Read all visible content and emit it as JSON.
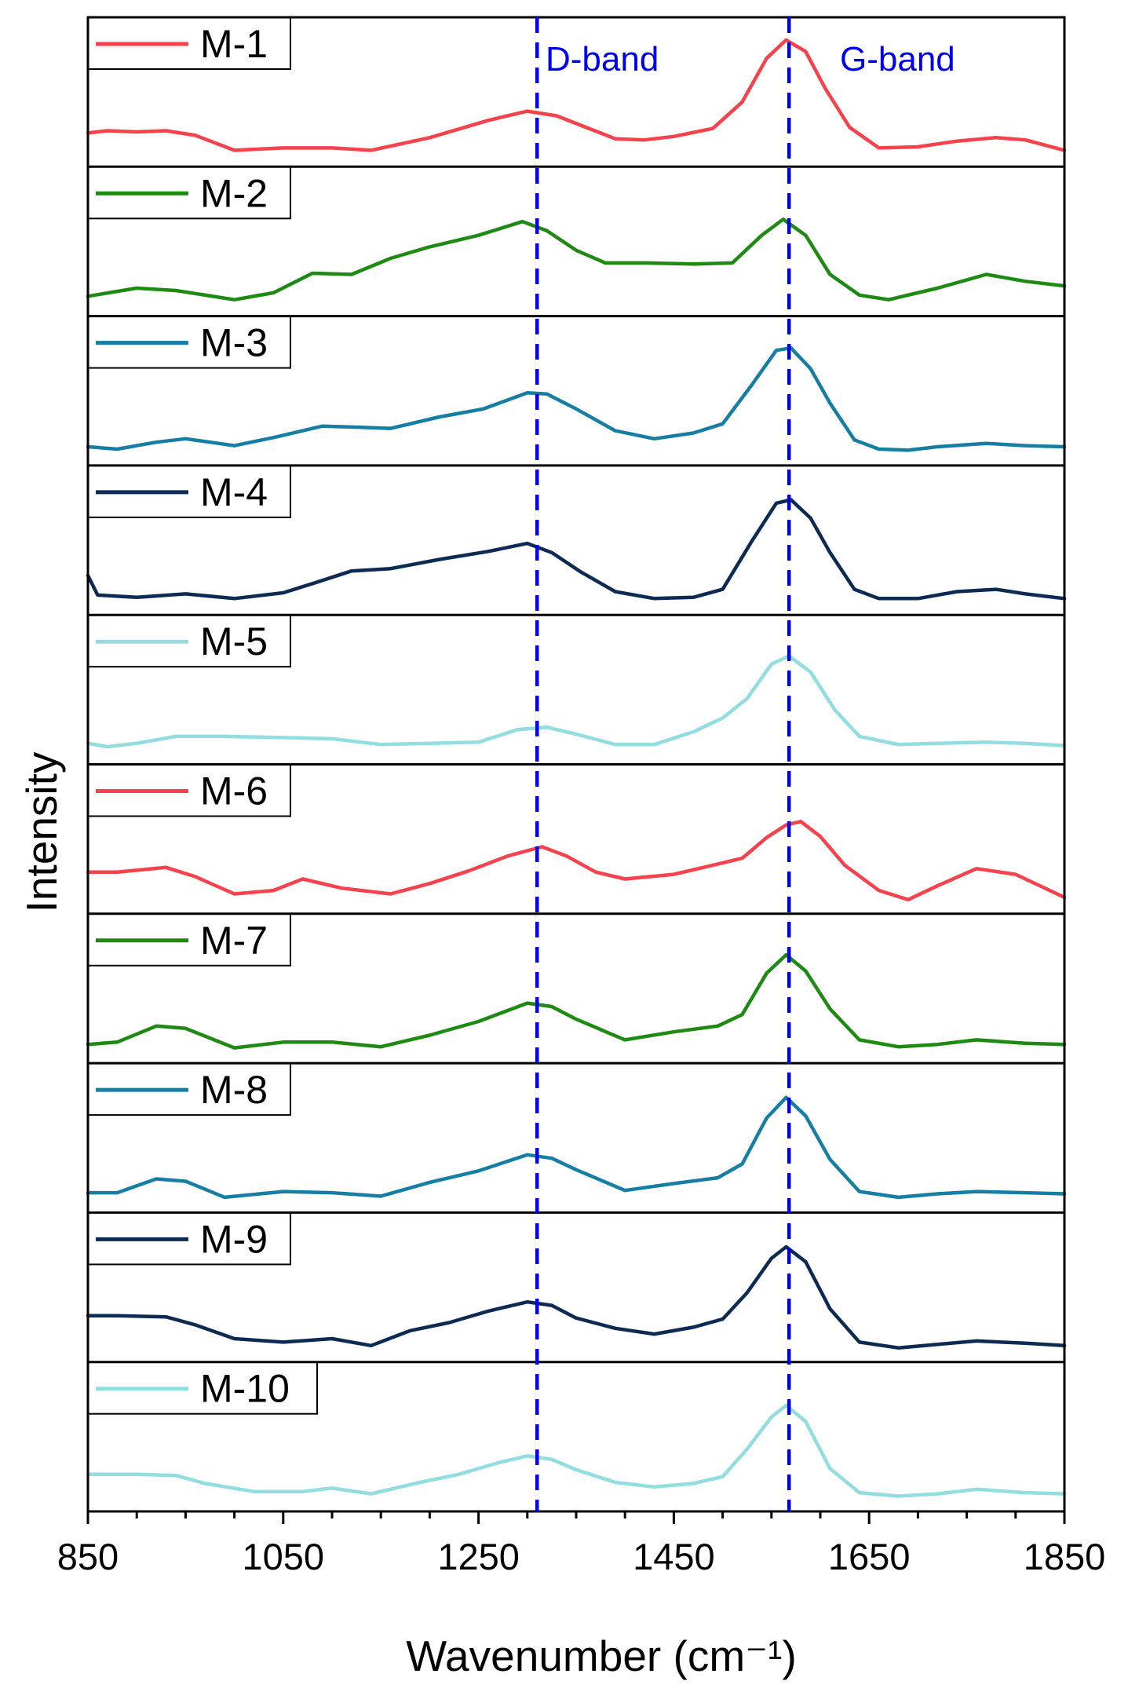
{
  "chart_data": {
    "type": "line",
    "layout": "stacked-panels",
    "xlabel": "Wavenumber (cm⁻¹)",
    "ylabel": "Intensity",
    "xlim": [
      850,
      1850
    ],
    "xticks": [
      850,
      1050,
      1250,
      1450,
      1650,
      1850
    ],
    "grid": false,
    "legend_placement": "top-left of each panel",
    "reference_lines": [
      {
        "label": "D-band",
        "x": 1310
      },
      {
        "label": "G-band",
        "x": 1568
      }
    ],
    "series": [
      {
        "name": "M-1",
        "color": "#f5424d",
        "points": [
          [
            850,
            0.17
          ],
          [
            870,
            0.19
          ],
          [
            900,
            0.18
          ],
          [
            930,
            0.19
          ],
          [
            960,
            0.15
          ],
          [
            1000,
            0.02
          ],
          [
            1050,
            0.04
          ],
          [
            1100,
            0.04
          ],
          [
            1140,
            0.02
          ],
          [
            1200,
            0.13
          ],
          [
            1260,
            0.28
          ],
          [
            1300,
            0.36
          ],
          [
            1330,
            0.32
          ],
          [
            1360,
            0.22
          ],
          [
            1390,
            0.12
          ],
          [
            1420,
            0.11
          ],
          [
            1450,
            0.14
          ],
          [
            1490,
            0.21
          ],
          [
            1520,
            0.44
          ],
          [
            1545,
            0.82
          ],
          [
            1565,
            0.98
          ],
          [
            1585,
            0.88
          ],
          [
            1605,
            0.56
          ],
          [
            1630,
            0.22
          ],
          [
            1660,
            0.04
          ],
          [
            1700,
            0.05
          ],
          [
            1740,
            0.1
          ],
          [
            1780,
            0.13
          ],
          [
            1810,
            0.11
          ],
          [
            1850,
            0.02
          ]
        ]
      },
      {
        "name": "M-2",
        "color": "#1f8a13",
        "points": [
          [
            850,
            0.05
          ],
          [
            900,
            0.12
          ],
          [
            940,
            0.1
          ],
          [
            1000,
            0.02
          ],
          [
            1040,
            0.08
          ],
          [
            1080,
            0.25
          ],
          [
            1120,
            0.24
          ],
          [
            1160,
            0.38
          ],
          [
            1200,
            0.48
          ],
          [
            1250,
            0.58
          ],
          [
            1295,
            0.7
          ],
          [
            1320,
            0.62
          ],
          [
            1350,
            0.45
          ],
          [
            1380,
            0.34
          ],
          [
            1420,
            0.34
          ],
          [
            1470,
            0.33
          ],
          [
            1510,
            0.34
          ],
          [
            1540,
            0.58
          ],
          [
            1562,
            0.72
          ],
          [
            1585,
            0.58
          ],
          [
            1610,
            0.24
          ],
          [
            1640,
            0.06
          ],
          [
            1670,
            0.02
          ],
          [
            1720,
            0.12
          ],
          [
            1770,
            0.24
          ],
          [
            1810,
            0.18
          ],
          [
            1850,
            0.14
          ]
        ]
      },
      {
        "name": "M-3",
        "color": "#177ea3",
        "points": [
          [
            850,
            0.04
          ],
          [
            880,
            0.02
          ],
          [
            920,
            0.08
          ],
          [
            950,
            0.11
          ],
          [
            1000,
            0.05
          ],
          [
            1040,
            0.12
          ],
          [
            1090,
            0.22
          ],
          [
            1130,
            0.21
          ],
          [
            1160,
            0.2
          ],
          [
            1210,
            0.3
          ],
          [
            1255,
            0.37
          ],
          [
            1300,
            0.51
          ],
          [
            1320,
            0.5
          ],
          [
            1350,
            0.37
          ],
          [
            1390,
            0.18
          ],
          [
            1430,
            0.11
          ],
          [
            1470,
            0.16
          ],
          [
            1500,
            0.24
          ],
          [
            1530,
            0.58
          ],
          [
            1555,
            0.88
          ],
          [
            1570,
            0.9
          ],
          [
            1590,
            0.72
          ],
          [
            1610,
            0.42
          ],
          [
            1635,
            0.1
          ],
          [
            1660,
            0.02
          ],
          [
            1690,
            0.01
          ],
          [
            1720,
            0.04
          ],
          [
            1770,
            0.07
          ],
          [
            1810,
            0.05
          ],
          [
            1850,
            0.04
          ]
        ]
      },
      {
        "name": "M-4",
        "color": "#0d2a52",
        "points": [
          [
            850,
            0.22
          ],
          [
            860,
            0.05
          ],
          [
            900,
            0.03
          ],
          [
            950,
            0.06
          ],
          [
            1000,
            0.02
          ],
          [
            1050,
            0.07
          ],
          [
            1080,
            0.15
          ],
          [
            1120,
            0.26
          ],
          [
            1160,
            0.28
          ],
          [
            1210,
            0.36
          ],
          [
            1260,
            0.43
          ],
          [
            1300,
            0.5
          ],
          [
            1325,
            0.42
          ],
          [
            1355,
            0.25
          ],
          [
            1390,
            0.08
          ],
          [
            1430,
            0.02
          ],
          [
            1470,
            0.03
          ],
          [
            1500,
            0.1
          ],
          [
            1530,
            0.52
          ],
          [
            1555,
            0.85
          ],
          [
            1570,
            0.88
          ],
          [
            1590,
            0.72
          ],
          [
            1610,
            0.42
          ],
          [
            1635,
            0.1
          ],
          [
            1660,
            0.02
          ],
          [
            1700,
            0.02
          ],
          [
            1740,
            0.08
          ],
          [
            1780,
            0.1
          ],
          [
            1810,
            0.06
          ],
          [
            1850,
            0.02
          ]
        ]
      },
      {
        "name": "M-5",
        "color": "#92dde0",
        "points": [
          [
            850,
            0.06
          ],
          [
            870,
            0.03
          ],
          [
            900,
            0.06
          ],
          [
            940,
            0.12
          ],
          [
            990,
            0.12
          ],
          [
            1050,
            0.11
          ],
          [
            1100,
            0.1
          ],
          [
            1150,
            0.05
          ],
          [
            1200,
            0.06
          ],
          [
            1250,
            0.07
          ],
          [
            1290,
            0.18
          ],
          [
            1320,
            0.2
          ],
          [
            1350,
            0.14
          ],
          [
            1390,
            0.05
          ],
          [
            1430,
            0.05
          ],
          [
            1470,
            0.16
          ],
          [
            1500,
            0.28
          ],
          [
            1525,
            0.45
          ],
          [
            1550,
            0.75
          ],
          [
            1568,
            0.82
          ],
          [
            1590,
            0.68
          ],
          [
            1615,
            0.35
          ],
          [
            1640,
            0.12
          ],
          [
            1680,
            0.05
          ],
          [
            1720,
            0.06
          ],
          [
            1770,
            0.07
          ],
          [
            1810,
            0.06
          ],
          [
            1850,
            0.04
          ]
        ]
      },
      {
        "name": "M-6",
        "color": "#f5424d",
        "points": [
          [
            850,
            0.24
          ],
          [
            880,
            0.24
          ],
          [
            930,
            0.28
          ],
          [
            960,
            0.2
          ],
          [
            1000,
            0.05
          ],
          [
            1040,
            0.08
          ],
          [
            1070,
            0.18
          ],
          [
            1110,
            0.1
          ],
          [
            1160,
            0.05
          ],
          [
            1200,
            0.14
          ],
          [
            1240,
            0.25
          ],
          [
            1280,
            0.38
          ],
          [
            1315,
            0.46
          ],
          [
            1340,
            0.38
          ],
          [
            1370,
            0.24
          ],
          [
            1400,
            0.18
          ],
          [
            1450,
            0.22
          ],
          [
            1490,
            0.3
          ],
          [
            1520,
            0.36
          ],
          [
            1545,
            0.54
          ],
          [
            1565,
            0.65
          ],
          [
            1580,
            0.68
          ],
          [
            1600,
            0.55
          ],
          [
            1625,
            0.3
          ],
          [
            1660,
            0.08
          ],
          [
            1690,
            0.0
          ],
          [
            1720,
            0.12
          ],
          [
            1760,
            0.27
          ],
          [
            1800,
            0.22
          ],
          [
            1850,
            0.02
          ]
        ]
      },
      {
        "name": "M-7",
        "color": "#1f8a13",
        "points": [
          [
            850,
            0.04
          ],
          [
            880,
            0.06
          ],
          [
            920,
            0.2
          ],
          [
            950,
            0.18
          ],
          [
            1000,
            0.01
          ],
          [
            1050,
            0.06
          ],
          [
            1100,
            0.06
          ],
          [
            1150,
            0.02
          ],
          [
            1200,
            0.12
          ],
          [
            1250,
            0.24
          ],
          [
            1300,
            0.4
          ],
          [
            1325,
            0.37
          ],
          [
            1350,
            0.26
          ],
          [
            1400,
            0.08
          ],
          [
            1450,
            0.15
          ],
          [
            1495,
            0.2
          ],
          [
            1520,
            0.3
          ],
          [
            1545,
            0.66
          ],
          [
            1565,
            0.82
          ],
          [
            1585,
            0.68
          ],
          [
            1610,
            0.35
          ],
          [
            1640,
            0.08
          ],
          [
            1680,
            0.02
          ],
          [
            1720,
            0.04
          ],
          [
            1760,
            0.08
          ],
          [
            1810,
            0.05
          ],
          [
            1850,
            0.04
          ]
        ]
      },
      {
        "name": "M-8",
        "color": "#177ea3",
        "points": [
          [
            850,
            0.05
          ],
          [
            880,
            0.05
          ],
          [
            920,
            0.17
          ],
          [
            950,
            0.15
          ],
          [
            990,
            0.01
          ],
          [
            1050,
            0.06
          ],
          [
            1100,
            0.05
          ],
          [
            1150,
            0.02
          ],
          [
            1200,
            0.14
          ],
          [
            1250,
            0.24
          ],
          [
            1300,
            0.38
          ],
          [
            1325,
            0.35
          ],
          [
            1350,
            0.25
          ],
          [
            1400,
            0.07
          ],
          [
            1450,
            0.13
          ],
          [
            1495,
            0.18
          ],
          [
            1520,
            0.3
          ],
          [
            1545,
            0.7
          ],
          [
            1565,
            0.88
          ],
          [
            1585,
            0.72
          ],
          [
            1610,
            0.34
          ],
          [
            1640,
            0.06
          ],
          [
            1680,
            0.01
          ],
          [
            1720,
            0.04
          ],
          [
            1760,
            0.06
          ],
          [
            1810,
            0.05
          ],
          [
            1850,
            0.04
          ]
        ]
      },
      {
        "name": "M-9",
        "color": "#0d2a52",
        "points": [
          [
            850,
            0.28
          ],
          [
            880,
            0.28
          ],
          [
            930,
            0.27
          ],
          [
            960,
            0.2
          ],
          [
            1000,
            0.08
          ],
          [
            1050,
            0.05
          ],
          [
            1100,
            0.08
          ],
          [
            1140,
            0.02
          ],
          [
            1180,
            0.15
          ],
          [
            1220,
            0.22
          ],
          [
            1260,
            0.32
          ],
          [
            1300,
            0.4
          ],
          [
            1325,
            0.37
          ],
          [
            1350,
            0.26
          ],
          [
            1390,
            0.17
          ],
          [
            1430,
            0.12
          ],
          [
            1470,
            0.18
          ],
          [
            1500,
            0.25
          ],
          [
            1525,
            0.48
          ],
          [
            1550,
            0.78
          ],
          [
            1565,
            0.88
          ],
          [
            1585,
            0.75
          ],
          [
            1610,
            0.34
          ],
          [
            1640,
            0.05
          ],
          [
            1680,
            0.0
          ],
          [
            1720,
            0.03
          ],
          [
            1760,
            0.06
          ],
          [
            1810,
            0.04
          ],
          [
            1850,
            0.02
          ]
        ]
      },
      {
        "name": "M-10",
        "color": "#92dde0",
        "points": [
          [
            850,
            0.2
          ],
          [
            900,
            0.2
          ],
          [
            940,
            0.19
          ],
          [
            970,
            0.12
          ],
          [
            1020,
            0.05
          ],
          [
            1070,
            0.05
          ],
          [
            1100,
            0.08
          ],
          [
            1140,
            0.03
          ],
          [
            1190,
            0.13
          ],
          [
            1230,
            0.2
          ],
          [
            1270,
            0.3
          ],
          [
            1300,
            0.36
          ],
          [
            1325,
            0.33
          ],
          [
            1350,
            0.24
          ],
          [
            1390,
            0.13
          ],
          [
            1430,
            0.09
          ],
          [
            1470,
            0.12
          ],
          [
            1500,
            0.18
          ],
          [
            1525,
            0.42
          ],
          [
            1550,
            0.7
          ],
          [
            1565,
            0.8
          ],
          [
            1585,
            0.66
          ],
          [
            1610,
            0.25
          ],
          [
            1640,
            0.04
          ],
          [
            1680,
            0.01
          ],
          [
            1720,
            0.03
          ],
          [
            1760,
            0.07
          ],
          [
            1810,
            0.04
          ],
          [
            1850,
            0.03
          ]
        ]
      }
    ]
  }
}
